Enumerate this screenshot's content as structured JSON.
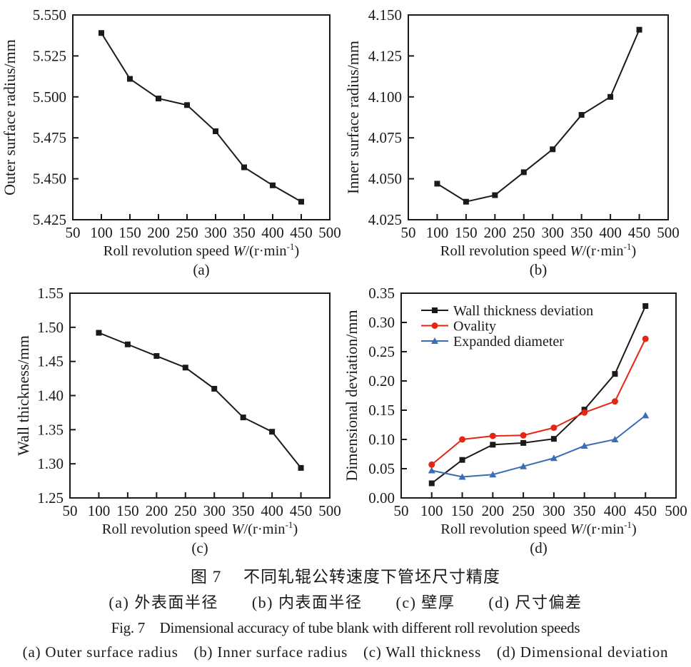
{
  "captions": {
    "zh_title": "图 7　 不同轧辊公转速度下管坯尺寸精度",
    "zh_subcaption": "(a) 外表面半径　　(b) 内表面半径　　(c) 壁厚　　(d) 尺寸偏差",
    "en_title": "Fig. 7　Dimensional accuracy of tube blank with different roll revolution speeds",
    "en_subcaption": "(a) Outer surface radius　(b) Inner surface radius　(c) Wall thickness　(d) Dimensional deviation"
  },
  "colors": {
    "ink": "#1a1a1a",
    "red": "#e42613",
    "blue": "#3a6db4"
  },
  "chart_data": [
    {
      "type": "line",
      "panel_label": "(a)",
      "xlabel_parts": [
        {
          "t": "Roll revolution speed "
        },
        {
          "t": "W",
          "style": "italic"
        },
        {
          "t": "/(r·min"
        },
        {
          "t": "-1",
          "style": "super"
        },
        {
          "t": ")"
        }
      ],
      "ylabel": "Outer surface radius/mm",
      "x": [
        100,
        150,
        200,
        250,
        300,
        350,
        400,
        450
      ],
      "xlim": [
        50,
        500
      ],
      "xticks": [
        "50",
        "100",
        "150",
        "200",
        "250",
        "300",
        "350",
        "400",
        "450",
        "500"
      ],
      "ylim": [
        5.425,
        5.55
      ],
      "yticks": [
        "5.425",
        "5.450",
        "5.475",
        "5.500",
        "5.525",
        "5.550"
      ],
      "series": [
        {
          "name": "Outer surface radius",
          "color": "#1a1a1a",
          "marker": "square",
          "values": [
            5.539,
            5.511,
            5.499,
            5.495,
            5.479,
            5.457,
            5.446,
            5.436
          ]
        }
      ]
    },
    {
      "type": "line",
      "panel_label": "(b)",
      "xlabel_parts": [
        {
          "t": "Roll revolution speed "
        },
        {
          "t": "W",
          "style": "italic"
        },
        {
          "t": "/(r·min"
        },
        {
          "t": "-1",
          "style": "super"
        },
        {
          "t": ")"
        }
      ],
      "ylabel": "Inner surface radius/mm",
      "x": [
        100,
        150,
        200,
        250,
        300,
        350,
        400,
        450
      ],
      "xlim": [
        50,
        500
      ],
      "xticks": [
        "50",
        "100",
        "150",
        "200",
        "250",
        "300",
        "350",
        "400",
        "450",
        "500"
      ],
      "ylim": [
        4.025,
        4.15
      ],
      "yticks": [
        "4.025",
        "4.050",
        "4.075",
        "4.100",
        "4.125",
        "4.150"
      ],
      "series": [
        {
          "name": "Inner surface radius",
          "color": "#1a1a1a",
          "marker": "square",
          "values": [
            4.047,
            4.036,
            4.04,
            4.054,
            4.068,
            4.089,
            4.1,
            4.141
          ]
        }
      ]
    },
    {
      "type": "line",
      "panel_label": "(c)",
      "xlabel_parts": [
        {
          "t": "Roll revolution speed "
        },
        {
          "t": "W",
          "style": "italic"
        },
        {
          "t": "/(r·min"
        },
        {
          "t": "-1",
          "style": "super"
        },
        {
          "t": ")"
        }
      ],
      "ylabel": "Wall thickness/mm",
      "x": [
        100,
        150,
        200,
        250,
        300,
        350,
        400,
        450
      ],
      "xlim": [
        50,
        500
      ],
      "xticks": [
        "50",
        "100",
        "150",
        "200",
        "250",
        "300",
        "350",
        "400",
        "450",
        "500"
      ],
      "ylim": [
        1.25,
        1.55
      ],
      "yticks": [
        "1.25",
        "1.30",
        "1.35",
        "1.40",
        "1.45",
        "1.50",
        "1.55"
      ],
      "series": [
        {
          "name": "Wall thickness",
          "color": "#1a1a1a",
          "marker": "square",
          "values": [
            1.492,
            1.475,
            1.458,
            1.441,
            1.41,
            1.368,
            1.347,
            1.294
          ]
        }
      ]
    },
    {
      "type": "line",
      "panel_label": "(d)",
      "xlabel_parts": [
        {
          "t": "Roll revolution speed "
        },
        {
          "t": "W",
          "style": "italic"
        },
        {
          "t": "/(r·min"
        },
        {
          "t": "-1",
          "style": "super"
        },
        {
          "t": ")"
        }
      ],
      "ylabel": "Dimensional deviation/mm",
      "x": [
        100,
        150,
        200,
        250,
        300,
        350,
        400,
        450
      ],
      "xlim": [
        50,
        500
      ],
      "xticks": [
        "50",
        "100",
        "150",
        "200",
        "250",
        "300",
        "350",
        "400",
        "450",
        "500"
      ],
      "ylim": [
        0.0,
        0.35
      ],
      "yticks": [
        "0.00",
        "0.05",
        "0.10",
        "0.15",
        "0.20",
        "0.25",
        "0.30",
        "0.35"
      ],
      "legend": true,
      "series": [
        {
          "name": "Wall thickness deviation",
          "color": "#1a1a1a",
          "marker": "square",
          "values": [
            0.025,
            0.065,
            0.091,
            0.094,
            0.101,
            0.151,
            0.212,
            0.328
          ]
        },
        {
          "name": "Ovality",
          "color": "#e42613",
          "marker": "circle",
          "values": [
            0.057,
            0.1,
            0.106,
            0.107,
            0.12,
            0.146,
            0.165,
            0.272
          ]
        },
        {
          "name": "Expanded diameter",
          "color": "#3a6db4",
          "marker": "triangle",
          "values": [
            0.047,
            0.036,
            0.04,
            0.054,
            0.068,
            0.089,
            0.1,
            0.141
          ]
        }
      ]
    }
  ]
}
